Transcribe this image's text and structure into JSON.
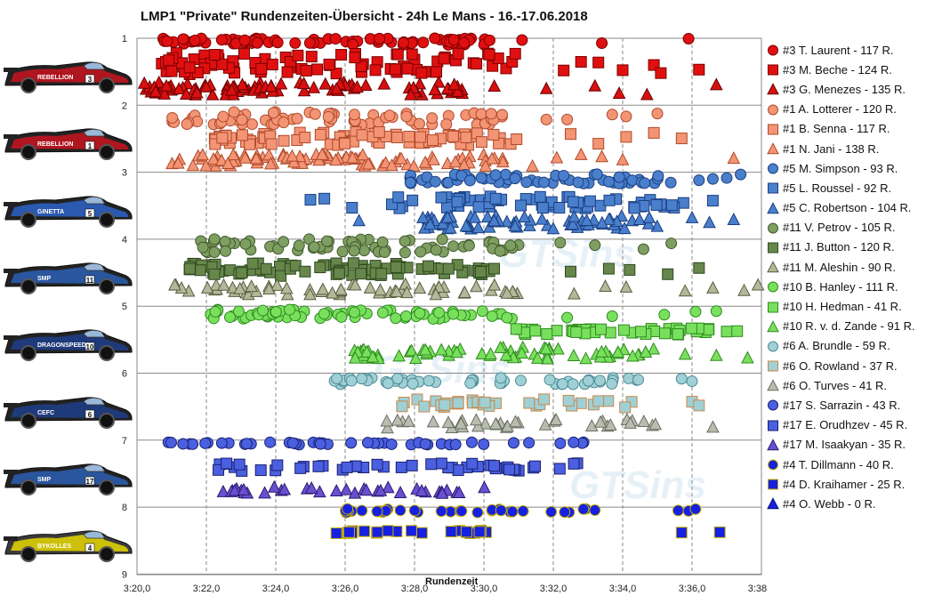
{
  "chart_data": {
    "type": "scatter",
    "title": "LMP1 \"Private\" Rundenzeiten-Übersicht  - 24h Le Mans  - 16.-17.06.2018",
    "xlabel": "Rundenzeit",
    "ylabel": "",
    "x_ticks": [
      "3:20,0",
      "3:22,0",
      "3:24,0",
      "3:26,0",
      "3:28,0",
      "3:30,0",
      "3:32,0",
      "3:34,0",
      "3:36,0",
      "3:38,0"
    ],
    "y_ticks": [
      "1",
      "2",
      "3",
      "4",
      "5",
      "6",
      "7",
      "8",
      "9"
    ],
    "xlim": [
      200.0,
      218.0
    ],
    "ylim": [
      1,
      9
    ],
    "grid": "x-dashed, y-solid",
    "legend_position": "right",
    "watermark": "GTSins",
    "cars": [
      {
        "number": "3",
        "livery": "REBELLION",
        "color": "#c8141e"
      },
      {
        "number": "1",
        "livery": "REBELLION",
        "color": "#c8141e"
      },
      {
        "number": "5",
        "livery": "GINETTA",
        "color": "#2c63c8"
      },
      {
        "number": "11",
        "livery": "SMP",
        "color": "#2c5fb4"
      },
      {
        "number": "10",
        "livery": "DRAGONSPEED",
        "color": "#1f3e8a"
      },
      {
        "number": "6",
        "livery": "CEFC",
        "color": "#1f3e8a"
      },
      {
        "number": "17",
        "livery": "SMP",
        "color": "#2c5fb4"
      },
      {
        "number": "4",
        "livery": "BYKOLLES",
        "color": "#e8d800"
      }
    ],
    "series": [
      {
        "name": "#3 T. Laurent - 117 R.",
        "marker": "circle",
        "color": "#e01010",
        "stroke": "#7a0000",
        "band": 1.05,
        "spread": 0.05,
        "xmin": 200.7,
        "xmax": 210.2,
        "n": 78,
        "outliers": [
          211.1,
          213.4,
          215.9
        ]
      },
      {
        "name": "#3 M. Beche - 124 R.",
        "marker": "square",
        "color": "#e01010",
        "stroke": "#7a0000",
        "band": 1.38,
        "spread": 0.16,
        "xmin": 200.7,
        "xmax": 211.0,
        "n": 85,
        "outliers": [
          212.3,
          212.8,
          213.3,
          214.0,
          214.9,
          215.1,
          216.2
        ]
      },
      {
        "name": "#3 G. Menezes - 135 R.",
        "marker": "triangle",
        "color": "#d81010",
        "stroke": "#6a0000",
        "band": 1.75,
        "spread": 0.1,
        "xmin": 200.2,
        "xmax": 209.5,
        "n": 90,
        "outliers": [
          210.3,
          211.8,
          213.2,
          213.9,
          214.7,
          216.7
        ]
      },
      {
        "name": "#1 A. Lotterer - 120 R.",
        "marker": "circle",
        "color": "#f39575",
        "stroke": "#b0492a",
        "band": 2.2,
        "spread": 0.1,
        "xmin": 201.0,
        "xmax": 210.7,
        "n": 78,
        "outliers": [
          211.8,
          212.4,
          213.7,
          214.1,
          215.0
        ]
      },
      {
        "name": "#1 B. Senna - 117 R.",
        "marker": "square",
        "color": "#f39575",
        "stroke": "#b0492a",
        "band": 2.5,
        "spread": 0.1,
        "xmin": 202.2,
        "xmax": 211.0,
        "n": 78,
        "outliers": [
          212.5,
          213.3,
          214.1,
          214.9,
          215.7
        ]
      },
      {
        "name": "#1 N. Jani - 138 R.",
        "marker": "triangle",
        "color": "#f39575",
        "stroke": "#b0492a",
        "band": 2.82,
        "spread": 0.09,
        "xmin": 201.0,
        "xmax": 210.7,
        "n": 90,
        "outliers": [
          211.4,
          212.1,
          212.8,
          213.4,
          214.0,
          217.2
        ]
      },
      {
        "name": "#5 M. Simpson - 93 R.",
        "marker": "circle",
        "color": "#4a7fcc",
        "stroke": "#1b3f80",
        "band": 3.1,
        "spread": 0.07,
        "xmin": 207.8,
        "xmax": 215.5,
        "n": 60,
        "outliers": [
          216.2,
          216.6,
          217.0,
          217.4
        ]
      },
      {
        "name": "#5 L. Roussel - 92 R.",
        "marker": "square",
        "color": "#4a7fcc",
        "stroke": "#1b3f80",
        "band": 3.45,
        "spread": 0.09,
        "xmin": 207.2,
        "xmax": 216.0,
        "n": 60,
        "outliers": [
          205.0,
          205.4,
          206.2,
          216.6
        ]
      },
      {
        "name": "#5 C. Robertson - 104 R.",
        "marker": "triangle",
        "color": "#4a7fcc",
        "stroke": "#1b3f80",
        "band": 3.75,
        "spread": 0.1,
        "xmin": 208.2,
        "xmax": 215.0,
        "n": 70,
        "outliers": [
          206.4,
          216.0,
          216.5,
          217.2
        ]
      },
      {
        "name": "#11 V. Petrov - 105 R.",
        "marker": "circle",
        "color": "#7f9e62",
        "stroke": "#3f5a2a",
        "band": 4.1,
        "spread": 0.1,
        "xmin": 201.8,
        "xmax": 211.0,
        "n": 70,
        "outliers": [
          212.2,
          213.2,
          214.6,
          215.4
        ]
      },
      {
        "name": "#11 J. Button - 120 R.",
        "marker": "square",
        "color": "#66864c",
        "stroke": "#2f4a1f",
        "band": 4.45,
        "spread": 0.1,
        "xmin": 201.5,
        "xmax": 210.5,
        "n": 80,
        "outliers": [
          212.5,
          213.6,
          214.2,
          215.3,
          216.2
        ]
      },
      {
        "name": "#11 M. Aleshin - 90 R.",
        "marker": "triangle",
        "color": "#b3b89a",
        "stroke": "#5a5f40",
        "band": 4.75,
        "spread": 0.08,
        "xmin": 201.0,
        "xmax": 211.0,
        "n": 60,
        "outliers": [
          212.6,
          213.5,
          214.1,
          215.8,
          216.6,
          217.5,
          217.9
        ]
      },
      {
        "name": "#10 B. Hanley - 111 R.",
        "marker": "circle",
        "color": "#79e05e",
        "stroke": "#2f8a1e",
        "band": 5.12,
        "spread": 0.07,
        "xmin": 202.1,
        "xmax": 211.0,
        "n": 70,
        "outliers": [
          212.4,
          213.7,
          215.2,
          216.1,
          216.7
        ]
      },
      {
        "name": "#10 H. Hedman - 41 R.",
        "marker": "square",
        "color": "#79e05e",
        "stroke": "#2f8a1e",
        "band": 5.38,
        "spread": 0.05,
        "xmin": 210.8,
        "xmax": 216.5,
        "n": 38,
        "outliers": [
          217.0,
          217.3
        ]
      },
      {
        "name": "#10 R. v. d. Zande - 91 R.",
        "marker": "triangle",
        "color": "#79e05e",
        "stroke": "#2f8a1e",
        "band": 5.7,
        "spread": 0.09,
        "xmin": 206.0,
        "xmax": 215.0,
        "n": 70,
        "outliers": [
          215.8,
          216.7,
          217.6
        ]
      },
      {
        "name": "#6 A. Brundle - 59 R.",
        "marker": "circle",
        "color": "#9fd0d6",
        "stroke": "#4a8a92",
        "band": 6.12,
        "spread": 0.05,
        "xmin": 205.5,
        "xmax": 214.5,
        "n": 50,
        "outliers": [
          215.7,
          216.0
        ]
      },
      {
        "name": "#6 O. Rowland - 37 R.",
        "marker": "square",
        "color": "#9fd0d6",
        "stroke": "#c8884a",
        "band": 6.45,
        "spread": 0.06,
        "xmin": 207.5,
        "xmax": 214.6,
        "n": 32,
        "outliers": [
          216.0,
          216.2
        ]
      },
      {
        "name": "#6 O. Turves - 41 R.",
        "marker": "triangle",
        "color": "#b8bdb0",
        "stroke": "#6a6f60",
        "band": 6.75,
        "spread": 0.07,
        "xmin": 207.2,
        "xmax": 215.0,
        "n": 36,
        "outliers": [
          216.6
        ]
      },
      {
        "name": "#17 S. Sarrazin - 43 R.",
        "marker": "circle",
        "color": "#4a60e0",
        "stroke": "#1a2070",
        "band": 7.05,
        "spread": 0.02,
        "xmin": 200.7,
        "xmax": 213.0,
        "n": 43,
        "outliers": []
      },
      {
        "name": "#17 E. Orudhzev - 45 R.",
        "marker": "square",
        "color": "#4a60e0",
        "stroke": "#1a2070",
        "band": 7.4,
        "spread": 0.06,
        "xmin": 202.0,
        "xmax": 213.0,
        "n": 45,
        "outliers": []
      },
      {
        "name": "#17 M. Isaakyan - 35 R.",
        "marker": "triangle",
        "color": "#6a50d0",
        "stroke": "#2a1a70",
        "band": 7.75,
        "spread": 0.05,
        "xmin": 202.4,
        "xmax": 210.2,
        "n": 35,
        "outliers": []
      },
      {
        "name": "#4 T. Dillmann - 40 R.",
        "marker": "circle",
        "color": "#1520e0",
        "stroke": "#c8b000",
        "band": 8.05,
        "spread": 0.03,
        "xmin": 206.0,
        "xmax": 213.0,
        "n": 34,
        "outliers": [
          213.2,
          215.6,
          215.9,
          216.1
        ]
      },
      {
        "name": "#4 D. Kraihamer - 25 R.",
        "marker": "square",
        "color": "#1520e0",
        "stroke": "#c8b000",
        "band": 8.37,
        "spread": 0.02,
        "xmin": 205.6,
        "xmax": 210.1,
        "n": 23,
        "outliers": [
          215.7,
          216.8
        ]
      },
      {
        "name": "#4 O. Webb - 0 R.",
        "marker": "triangle",
        "color": "#1520e0",
        "stroke": "#0a1070",
        "band": 8.7,
        "spread": 0,
        "xmin": 0,
        "xmax": 0,
        "n": 0,
        "outliers": []
      }
    ]
  }
}
